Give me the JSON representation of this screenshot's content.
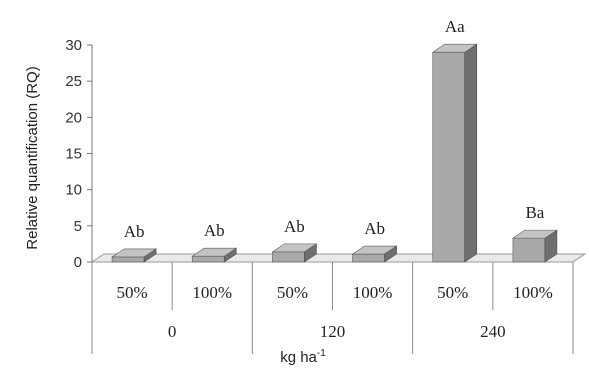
{
  "chart_data": {
    "type": "bar",
    "ylabel": "Relative quantification (RQ)",
    "xlabel_main": "kg ha",
    "xlabel_sup": "-1",
    "yticks": [
      "0",
      "5",
      "10",
      "15",
      "20",
      "25",
      "30"
    ],
    "ylim": [
      0,
      30
    ],
    "groups": [
      "0",
      "120",
      "240"
    ],
    "subcategories": [
      "50%",
      "100%",
      "50%",
      "100%",
      "50%",
      "100%"
    ],
    "values": [
      0.7,
      0.8,
      1.4,
      1.1,
      29.0,
      3.3
    ],
    "bar_labels": [
      "Ab",
      "Ab",
      "Ab",
      "Ab",
      "Aa",
      "Ba"
    ],
    "grid": false,
    "colors": {
      "front": "#a9a9a9",
      "side": "#6f6f6f",
      "top": "#c4c4c4",
      "floor": "#e9e9e9"
    }
  }
}
